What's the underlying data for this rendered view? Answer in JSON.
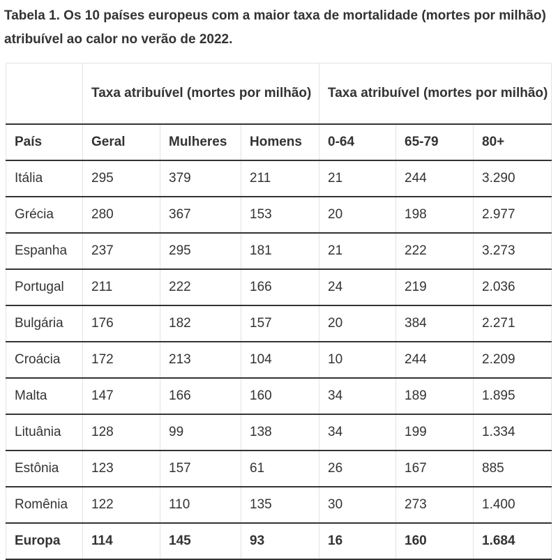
{
  "caption": "Tabela 1. Os 10 países europeus com a maior taxa de mortalidade (mortes por milhão) atribuível ao calor no verão de 2022.",
  "table": {
    "group_headers": [
      "",
      "Taxa atribuível (mortes por milhão)",
      "Taxa atribuível (mortes por milhão)"
    ],
    "columns": [
      "País",
      "Geral",
      "Mulheres",
      "Homens",
      "0-64",
      "65-79",
      "80+"
    ],
    "rows": [
      [
        "Itália",
        "295",
        "379",
        "211",
        "21",
        "244",
        "3.290"
      ],
      [
        "Grécia",
        "280",
        "367",
        "153",
        "20",
        "198",
        "2.977"
      ],
      [
        "Espanha",
        "237",
        "295",
        "181",
        "21",
        "222",
        "3.273"
      ],
      [
        "Portugal",
        "211",
        "222",
        "166",
        "24",
        "219",
        "2.036"
      ],
      [
        "Bulgária",
        "176",
        "182",
        "157",
        "20",
        "384",
        "2.271"
      ],
      [
        "Croácia",
        "172",
        "213",
        "104",
        "10",
        "244",
        "2.209"
      ],
      [
        "Malta",
        "147",
        "166",
        "160",
        "34",
        "189",
        "1.895"
      ],
      [
        "Lituânia",
        "128",
        "99",
        "138",
        "34",
        "199",
        "1.334"
      ],
      [
        "Estônia",
        "123",
        "157",
        "61",
        "26",
        "167",
        "885"
      ],
      [
        "Romênia",
        "122",
        "110",
        "135",
        "30",
        "273",
        "1.400"
      ]
    ],
    "total": [
      "Europa",
      "114",
      "145",
      "93",
      "16",
      "160",
      "1.684"
    ]
  }
}
